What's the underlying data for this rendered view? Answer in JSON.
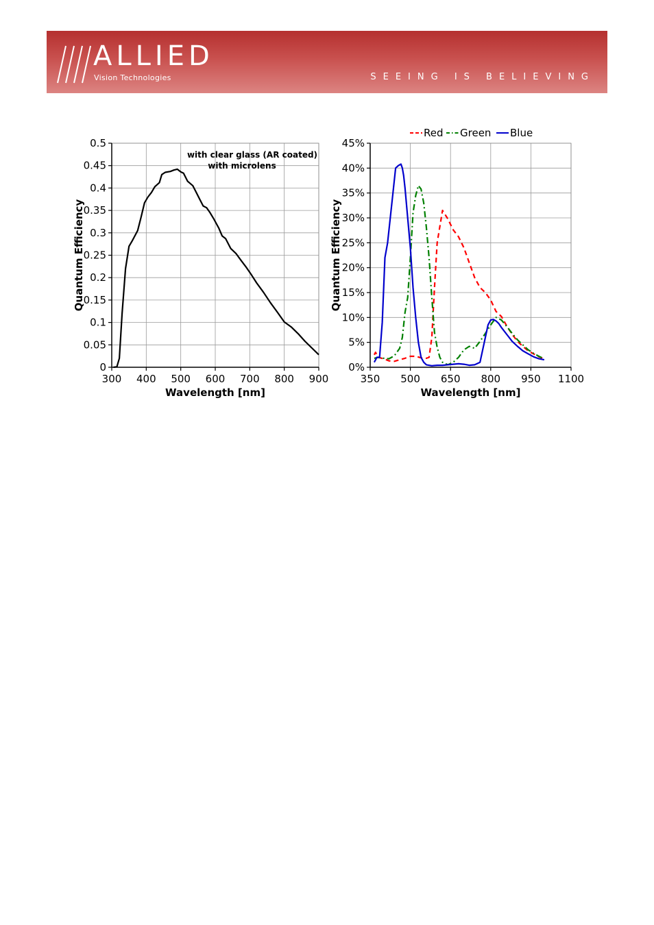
{
  "header": {
    "brand": "ALLIED",
    "subbrand": "Vision Technologies",
    "tagline": "SEEING IS BELIEVING",
    "colors": {
      "banner_top": "#b5302f",
      "banner_bottom": "#dc8481",
      "text": "#ffffff"
    }
  },
  "chart_data": [
    {
      "type": "line",
      "xlabel": "Wavelength [nm]",
      "ylabel": "Quantum Efficiency",
      "xlim": [
        300,
        900
      ],
      "ylim": [
        0,
        0.5
      ],
      "xticks": [
        300,
        400,
        500,
        600,
        700,
        800,
        900
      ],
      "yticks": [
        0,
        0.05,
        0.1,
        0.15,
        0.2,
        0.25,
        0.3,
        0.35,
        0.4,
        0.45,
        0.5
      ],
      "ytick_labels": [
        "0",
        "0.05",
        "0.1",
        "0.15",
        "0.2",
        "0.25",
        "0.3",
        "0.35",
        "0.4",
        "0.45",
        "0.5"
      ],
      "grid": true,
      "annotations": [
        "with clear glass (AR coated)",
        "with microlens"
      ],
      "series": [
        {
          "color": "#000000",
          "dash": "solid",
          "x": [
            305,
            315,
            322,
            330,
            340,
            350,
            360,
            375,
            385,
            395,
            405,
            415,
            425,
            438,
            445,
            455,
            470,
            480,
            490,
            500,
            508,
            520,
            535,
            545,
            555,
            565,
            575,
            585,
            595,
            610,
            620,
            630,
            645,
            660,
            675,
            690,
            705,
            720,
            740,
            760,
            780,
            800,
            820,
            840,
            860,
            880,
            900
          ],
          "y": [
            0,
            0.001,
            0.02,
            0.12,
            0.22,
            0.27,
            0.283,
            0.305,
            0.335,
            0.367,
            0.38,
            0.39,
            0.403,
            0.412,
            0.43,
            0.435,
            0.437,
            0.44,
            0.442,
            0.436,
            0.433,
            0.415,
            0.405,
            0.39,
            0.375,
            0.36,
            0.356,
            0.345,
            0.332,
            0.311,
            0.293,
            0.287,
            0.265,
            0.254,
            0.238,
            0.223,
            0.206,
            0.188,
            0.167,
            0.144,
            0.123,
            0.101,
            0.09,
            0.075,
            0.058,
            0.043,
            0.028
          ]
        }
      ]
    },
    {
      "type": "line",
      "xlabel": "Wavelength [nm]",
      "ylabel": "Quantum Efficiency",
      "xlim": [
        350,
        1100
      ],
      "ylim": [
        0,
        0.45
      ],
      "xticks": [
        350,
        500,
        650,
        800,
        950,
        1100
      ],
      "yticks": [
        0,
        0.05,
        0.1,
        0.15,
        0.2,
        0.25,
        0.3,
        0.35,
        0.4,
        0.45
      ],
      "ytick_labels": [
        "0%",
        "5%",
        "10%",
        "15%",
        "20%",
        "25%",
        "30%",
        "35%",
        "40%",
        "45%"
      ],
      "grid": true,
      "legend_position": "top",
      "series": [
        {
          "name": "Red",
          "color": "#ff0000",
          "dash": "dashed",
          "x": [
            365,
            370,
            380,
            400,
            420,
            440,
            460,
            480,
            500,
            520,
            540,
            560,
            570,
            580,
            590,
            600,
            620,
            640,
            660,
            680,
            700,
            720,
            740,
            760,
            780,
            800,
            820,
            840,
            860,
            880,
            900,
            920,
            940,
            960,
            980,
            1000
          ],
          "y": [
            0.025,
            0.03,
            0.02,
            0.017,
            0.013,
            0.012,
            0.015,
            0.018,
            0.022,
            0.022,
            0.019,
            0.018,
            0.02,
            0.06,
            0.16,
            0.25,
            0.315,
            0.298,
            0.276,
            0.262,
            0.24,
            0.21,
            0.18,
            0.16,
            0.15,
            0.135,
            0.112,
            0.102,
            0.083,
            0.066,
            0.052,
            0.042,
            0.033,
            0.027,
            0.021,
            0.017
          ]
        },
        {
          "name": "Green",
          "color": "#008000",
          "dash": "dashdot",
          "x": [
            365,
            380,
            400,
            420,
            440,
            460,
            470,
            480,
            490,
            500,
            510,
            520,
            530,
            540,
            550,
            560,
            570,
            580,
            590,
            600,
            610,
            620,
            640,
            660,
            680,
            700,
            720,
            740,
            760,
            780,
            800,
            820,
            840,
            860,
            880,
            900,
            920,
            940,
            960,
            980,
            1000
          ],
          "y": [
            0.018,
            0.02,
            0.018,
            0.017,
            0.023,
            0.038,
            0.06,
            0.11,
            0.14,
            0.22,
            0.31,
            0.345,
            0.365,
            0.358,
            0.33,
            0.28,
            0.22,
            0.14,
            0.07,
            0.04,
            0.02,
            0.01,
            0.005,
            0.01,
            0.02,
            0.035,
            0.042,
            0.038,
            0.052,
            0.068,
            0.085,
            0.1,
            0.095,
            0.082,
            0.068,
            0.055,
            0.045,
            0.035,
            0.028,
            0.022,
            0.017
          ]
        },
        {
          "name": "Blue",
          "color": "#0000cc",
          "dash": "solid",
          "x": [
            365,
            375,
            385,
            395,
            405,
            415,
            425,
            435,
            445,
            455,
            465,
            470,
            475,
            480,
            490,
            500,
            510,
            520,
            530,
            540,
            550,
            560,
            580,
            600,
            620,
            640,
            660,
            680,
            700,
            720,
            740,
            760,
            780,
            790,
            800,
            810,
            820,
            830,
            840,
            860,
            880,
            900,
            920,
            940,
            960,
            980,
            1000
          ],
          "y": [
            0.01,
            0.02,
            0.02,
            0.09,
            0.22,
            0.25,
            0.3,
            0.35,
            0.4,
            0.405,
            0.408,
            0.4,
            0.385,
            0.36,
            0.3,
            0.24,
            0.16,
            0.1,
            0.05,
            0.02,
            0.01,
            0.005,
            0.003,
            0.004,
            0.004,
            0.005,
            0.006,
            0.007,
            0.006,
            0.004,
            0.005,
            0.01,
            0.06,
            0.085,
            0.095,
            0.096,
            0.093,
            0.088,
            0.08,
            0.066,
            0.052,
            0.042,
            0.033,
            0.027,
            0.021,
            0.017,
            0.015
          ]
        }
      ]
    }
  ]
}
